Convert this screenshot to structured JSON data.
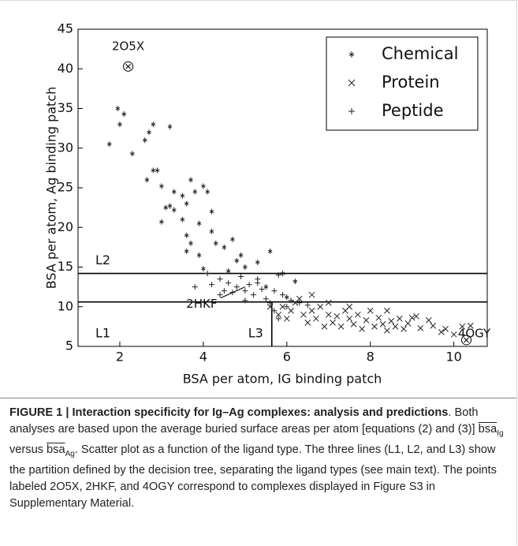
{
  "chart_data": {
    "type": "scatter",
    "xlabel": "BSA per atom, IG binding patch",
    "ylabel": "BSA per atom, Ag binding patch",
    "xlim": [
      1,
      10.8
    ],
    "ylim": [
      5,
      45
    ],
    "xticks": [
      2,
      4,
      6,
      8,
      10
    ],
    "yticks": [
      5,
      10,
      15,
      20,
      25,
      30,
      35,
      40,
      45
    ],
    "legend": "upper right",
    "series": [
      {
        "name": "Chemical",
        "marker": "star",
        "color": "#222222",
        "x": [
          1.75,
          1.95,
          2.0,
          2.1,
          2.3,
          2.6,
          2.7,
          2.8,
          3.2,
          2.65,
          2.8,
          2.9,
          3.0,
          3.1,
          3.2,
          3.3,
          3.5,
          3.6,
          3.7,
          3.8,
          4.0,
          4.1,
          4.2,
          3.5,
          3.6,
          3.7,
          3.9,
          3.0,
          4.2,
          4.3,
          4.5,
          4.7,
          4.9,
          5.0,
          5.3,
          5.6,
          4.8,
          3.6,
          3.9,
          4.0,
          4.6,
          5.9,
          5.5,
          6.0,
          6.2,
          3.3
        ],
        "values": [
          30.5,
          35,
          33,
          34.3,
          29.3,
          31,
          32,
          33,
          32.7,
          26,
          27.2,
          27.2,
          25.2,
          22.5,
          22.7,
          24.5,
          24,
          23,
          26,
          24.5,
          25.2,
          24.5,
          22,
          21,
          19,
          18,
          20.5,
          20.7,
          19.5,
          18,
          17.5,
          18.5,
          16.5,
          15,
          15.6,
          17,
          15.8,
          17,
          16.5,
          14.8,
          14.5,
          14.2,
          12.5,
          11.2,
          13.2,
          22.2
        ]
      },
      {
        "name": "Protein",
        "marker": "cross",
        "color": "#222222",
        "x": [
          5.6,
          5.8,
          5.9,
          6.0,
          6.1,
          6.2,
          6.4,
          6.5,
          6.6,
          6.7,
          6.8,
          6.9,
          7.0,
          7.1,
          7.2,
          7.3,
          7.4,
          7.5,
          7.6,
          7.7,
          7.8,
          7.9,
          8.0,
          8.1,
          8.2,
          8.3,
          8.4,
          8.5,
          8.6,
          8.7,
          8.8,
          8.9,
          9.0,
          9.2,
          9.4,
          9.5,
          9.7,
          9.8,
          10.0,
          10.2,
          10.4,
          6.3,
          7.0,
          6.6,
          8.4,
          9.1,
          7.5
        ],
        "values": [
          10,
          9,
          10,
          8.5,
          9.5,
          10.5,
          9,
          8,
          9.5,
          8.5,
          10,
          7.5,
          9,
          8,
          8.8,
          7.5,
          9.5,
          8.5,
          7.8,
          9,
          7.2,
          8.3,
          9.5,
          7.5,
          8.6,
          7.8,
          7,
          8.2,
          7.5,
          8.5,
          7.2,
          7.9,
          8.6,
          7.3,
          8.3,
          7.6,
          6.8,
          7.2,
          6.5,
          7.5,
          7.6,
          11,
          10.5,
          11.5,
          9.5,
          8.8,
          10
        ]
      },
      {
        "name": "Peptide",
        "marker": "plus",
        "color": "#222222",
        "x": [
          3.8,
          4.2,
          4.4,
          4.5,
          4.6,
          4.7,
          4.8,
          4.9,
          5.0,
          5.1,
          5.2,
          5.3,
          5.4,
          5.5,
          5.6,
          5.7,
          5.8,
          5.9,
          6.0,
          6.1,
          6.3,
          5.7,
          4.4,
          5.0,
          5.3,
          6.5,
          4.1,
          5.8
        ],
        "values": [
          12.5,
          12.8,
          13.5,
          12,
          13,
          11.8,
          12.5,
          13.8,
          12,
          12.8,
          11.5,
          13,
          12.2,
          11,
          10.5,
          12,
          14,
          11.5,
          10,
          10.8,
          10.5,
          9.5,
          11.5,
          10.8,
          13.5,
          10.2,
          14.2,
          8.5
        ]
      }
    ],
    "partition": [
      {
        "name": "L1",
        "y": 10.6
      },
      {
        "name": "L2",
        "y": 14.2
      },
      {
        "name": "L3",
        "x": 5.64
      }
    ],
    "annotations": [
      {
        "text": "2O5X",
        "x": 2.2,
        "y": 40.3
      },
      {
        "text": "2HKF",
        "x": 5.0,
        "y": 12.5
      },
      {
        "text": "4OGY",
        "x": 10.3,
        "y": 5.8
      }
    ]
  },
  "caption": {
    "label": "FIGURE 1 | Interaction specificity for Ig–Ag complexes: analysis and predictions",
    "text1": ". Both analyses are based upon the average buried surface areas per atom [equations (2) and (3)] ",
    "sym1": "bsa",
    "sub1": "Ig",
    "text2": " versus ",
    "sym2": "bsa",
    "sub2": "Ag",
    "text3": ". Scatter plot as a function of the ligand type. The three lines (L1, L2, and L3) show the partition defined by the decision tree, separating the ligand types (see main text). The points labeled 2O5X, 2HKF, and 4OGY correspond to complexes displayed in Figure S3 in Supplementary Material."
  }
}
